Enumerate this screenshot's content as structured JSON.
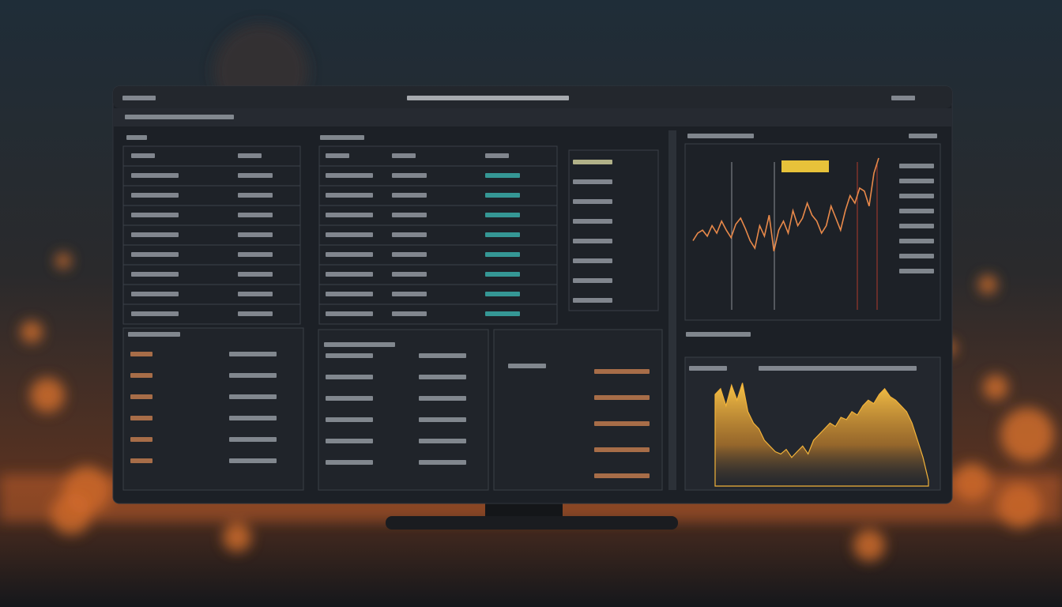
{
  "chart_data": [
    {
      "type": "line",
      "color": "#e8894a",
      "ylim": [
        0,
        100
      ],
      "values": [
        45,
        50,
        52,
        48,
        55,
        50,
        58,
        52,
        47,
        56,
        60,
        53,
        45,
        40,
        55,
        48,
        62,
        38,
        52,
        58,
        50,
        65,
        55,
        60,
        70,
        62,
        58,
        50,
        55,
        68,
        60,
        52,
        65,
        75,
        70,
        80,
        78,
        68,
        90,
        100
      ]
    },
    {
      "type": "area",
      "color": "#f2b33a",
      "ylim": [
        0,
        100
      ],
      "values": [
        80,
        85,
        70,
        88,
        75,
        90,
        65,
        55,
        50,
        40,
        35,
        30,
        28,
        32,
        25,
        30,
        35,
        28,
        40,
        45,
        50,
        55,
        52,
        60,
        58,
        65,
        62,
        70,
        75,
        72,
        80,
        85,
        78,
        75,
        70,
        65,
        55,
        40,
        25,
        5
      ]
    }
  ]
}
